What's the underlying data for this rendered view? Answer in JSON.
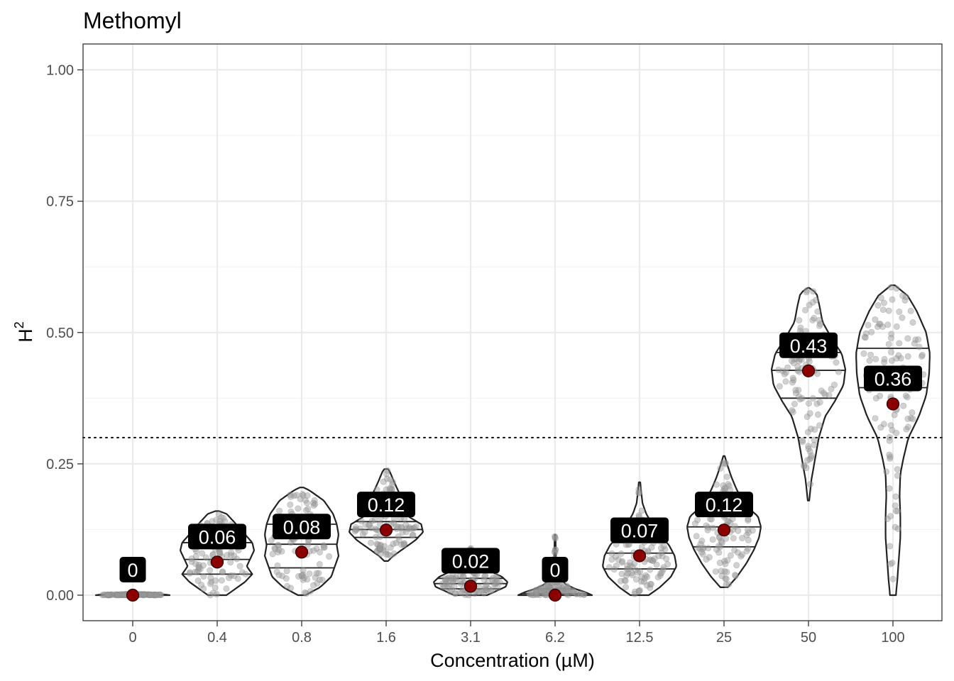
{
  "chart_data": {
    "type": "violin",
    "title": "Methomyl",
    "xlabel": "Concentration (µM)",
    "ylabel": "H",
    "ylabel_superscript": "2",
    "ylim": [
      -0.05,
      1.05
    ],
    "yticks": [
      0,
      0.25,
      0.5,
      0.75,
      1.0
    ],
    "ytick_labels": [
      "0.00",
      "0.25",
      "0.50",
      "0.75",
      "1.00"
    ],
    "threshold": 0.3,
    "grid": true,
    "categories": [
      "0",
      "0.4",
      "0.8",
      "1.6",
      "3.1",
      "6.2",
      "12.5",
      "25",
      "50",
      "100"
    ],
    "mean_values": [
      0,
      0.063,
      0.082,
      0.124,
      0.017,
      0.0,
      0.075,
      0.124,
      0.427,
      0.364
    ],
    "mean_labels": [
      "0",
      "0.06",
      "0.08",
      "0.12",
      "0.02",
      "0",
      "0.07",
      "0.12",
      "0.43",
      "0.36"
    ],
    "violins": [
      {
        "min": 0.0,
        "max": 0.002,
        "quartiles": [
          0.0,
          0.0,
          0.001
        ],
        "profile": [
          [
            0.0,
            1.0
          ],
          [
            0.001,
            0.9
          ],
          [
            0.002,
            0.05
          ]
        ]
      },
      {
        "min": 0.0,
        "max": 0.16,
        "quartiles": [
          0.04,
          0.068,
          0.1
        ],
        "profile": [
          [
            0.0,
            0.25
          ],
          [
            0.01,
            0.45
          ],
          [
            0.025,
            0.75
          ],
          [
            0.04,
            0.95
          ],
          [
            0.055,
            0.8
          ],
          [
            0.07,
            0.9
          ],
          [
            0.085,
            1.0
          ],
          [
            0.1,
            0.95
          ],
          [
            0.12,
            0.7
          ],
          [
            0.14,
            0.45
          ],
          [
            0.155,
            0.25
          ],
          [
            0.16,
            0.05
          ]
        ]
      },
      {
        "min": 0.0,
        "max": 0.205,
        "quartiles": [
          0.052,
          0.097,
          0.135
        ],
        "profile": [
          [
            0.0,
            0.1
          ],
          [
            0.015,
            0.5
          ],
          [
            0.035,
            0.8
          ],
          [
            0.055,
            0.9
          ],
          [
            0.075,
            1.0
          ],
          [
            0.095,
            0.95
          ],
          [
            0.115,
            1.0
          ],
          [
            0.135,
            0.95
          ],
          [
            0.155,
            0.85
          ],
          [
            0.18,
            0.6
          ],
          [
            0.2,
            0.2
          ],
          [
            0.205,
            0.05
          ]
        ]
      },
      {
        "min": 0.065,
        "max": 0.24,
        "quartiles": [
          0.11,
          0.125,
          0.14
        ],
        "profile": [
          [
            0.065,
            0.05
          ],
          [
            0.075,
            0.2
          ],
          [
            0.09,
            0.5
          ],
          [
            0.105,
            0.8
          ],
          [
            0.12,
            1.0
          ],
          [
            0.135,
            0.95
          ],
          [
            0.15,
            0.6
          ],
          [
            0.17,
            0.45
          ],
          [
            0.195,
            0.35
          ],
          [
            0.215,
            0.22
          ],
          [
            0.235,
            0.1
          ],
          [
            0.24,
            0.05
          ]
        ]
      },
      {
        "min": 0.0,
        "max": 0.09,
        "quartiles": [
          0.012,
          0.022,
          0.032
        ],
        "profile": [
          [
            0.0,
            0.45
          ],
          [
            0.008,
            0.7
          ],
          [
            0.016,
            0.95
          ],
          [
            0.025,
            1.0
          ],
          [
            0.035,
            0.85
          ],
          [
            0.045,
            0.55
          ],
          [
            0.06,
            0.25
          ],
          [
            0.075,
            0.1
          ],
          [
            0.09,
            0.02
          ]
        ]
      },
      {
        "min": 0.0,
        "max": 0.115,
        "quartiles": [
          0.0,
          0.003,
          0.012
        ],
        "profile": [
          [
            0.0,
            1.0
          ],
          [
            0.005,
            0.85
          ],
          [
            0.012,
            0.55
          ],
          [
            0.02,
            0.3
          ],
          [
            0.03,
            0.15
          ],
          [
            0.045,
            0.05
          ],
          [
            0.06,
            0.03
          ],
          [
            0.08,
            0.02
          ],
          [
            0.1,
            0.015
          ],
          [
            0.115,
            0.01
          ]
        ]
      },
      {
        "min": 0.0,
        "max": 0.215,
        "quartiles": [
          0.05,
          0.08,
          0.1
        ],
        "profile": [
          [
            0.0,
            0.25
          ],
          [
            0.015,
            0.55
          ],
          [
            0.035,
            0.85
          ],
          [
            0.055,
            1.0
          ],
          [
            0.075,
            0.95
          ],
          [
            0.095,
            0.8
          ],
          [
            0.115,
            0.55
          ],
          [
            0.135,
            0.35
          ],
          [
            0.155,
            0.18
          ],
          [
            0.175,
            0.08
          ],
          [
            0.2,
            0.04
          ],
          [
            0.215,
            0.02
          ]
        ]
      },
      {
        "min": 0.015,
        "max": 0.265,
        "quartiles": [
          0.092,
          0.13,
          0.16
        ],
        "profile": [
          [
            0.015,
            0.1
          ],
          [
            0.035,
            0.35
          ],
          [
            0.06,
            0.6
          ],
          [
            0.085,
            0.8
          ],
          [
            0.11,
            0.95
          ],
          [
            0.13,
            1.0
          ],
          [
            0.15,
            0.92
          ],
          [
            0.17,
            0.6
          ],
          [
            0.2,
            0.35
          ],
          [
            0.225,
            0.2
          ],
          [
            0.25,
            0.08
          ],
          [
            0.265,
            0.02
          ]
        ]
      },
      {
        "min": 0.18,
        "max": 0.585,
        "quartiles": [
          0.375,
          0.428,
          0.462
        ],
        "profile": [
          [
            0.18,
            0.02
          ],
          [
            0.22,
            0.08
          ],
          [
            0.26,
            0.18
          ],
          [
            0.3,
            0.28
          ],
          [
            0.34,
            0.45
          ],
          [
            0.37,
            0.72
          ],
          [
            0.4,
            0.95
          ],
          [
            0.43,
            1.0
          ],
          [
            0.46,
            0.9
          ],
          [
            0.49,
            0.62
          ],
          [
            0.52,
            0.38
          ],
          [
            0.55,
            0.3
          ],
          [
            0.575,
            0.22
          ],
          [
            0.585,
            0.02
          ]
        ]
      },
      {
        "min": 0.0,
        "max": 0.59,
        "quartiles": [
          0.0,
          0.395,
          0.47
        ],
        "profile": [
          [
            0.0,
            0.08
          ],
          [
            0.03,
            0.12
          ],
          [
            0.07,
            0.16
          ],
          [
            0.11,
            0.2
          ],
          [
            0.15,
            0.2
          ],
          [
            0.19,
            0.18
          ],
          [
            0.23,
            0.2
          ],
          [
            0.26,
            0.28
          ],
          [
            0.3,
            0.42
          ],
          [
            0.34,
            0.7
          ],
          [
            0.38,
            0.9
          ],
          [
            0.42,
            0.98
          ],
          [
            0.46,
            1.0
          ],
          [
            0.5,
            0.9
          ],
          [
            0.54,
            0.65
          ],
          [
            0.57,
            0.4
          ],
          [
            0.59,
            0.05
          ]
        ]
      }
    ]
  }
}
